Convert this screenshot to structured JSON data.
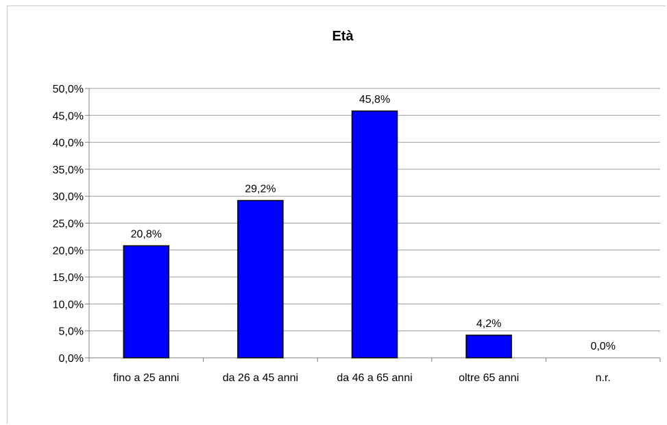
{
  "chart_data": {
    "type": "bar",
    "title": "Età",
    "xlabel": "",
    "ylabel": "",
    "categories": [
      "fino a 25 anni",
      "da 26 a 45 anni",
      "da 46 a 65 anni",
      "oltre 65 anni",
      "n.r."
    ],
    "values": [
      20.8,
      29.2,
      45.8,
      4.2,
      0.0
    ],
    "value_labels": [
      "20,8%",
      "29,2%",
      "45,8%",
      "4,2%",
      "0,0%"
    ],
    "ylim": [
      0,
      50
    ],
    "yticks": [
      "0,0%",
      "5,0%",
      "10,0%",
      "15,0%",
      "20,0%",
      "25,0%",
      "30,0%",
      "35,0%",
      "40,0%",
      "45,0%",
      "50,0%"
    ],
    "grid": true,
    "legend": "none",
    "bar_color": "#0000ff"
  }
}
